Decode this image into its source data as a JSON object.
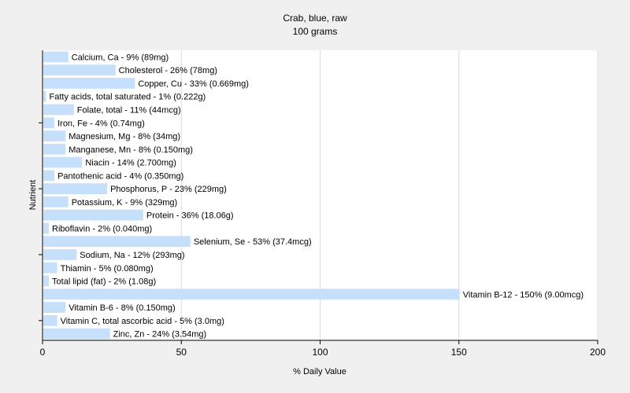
{
  "chart_data": {
    "type": "bar",
    "orientation": "horizontal",
    "title": "Crab, blue, raw",
    "subtitle": "100 grams",
    "xlabel": "% Daily Value",
    "ylabel": "Nutrient",
    "xlim": [
      0,
      200
    ],
    "xticks": [
      "0",
      "50",
      "100",
      "150",
      "200"
    ],
    "grid": true,
    "bar_color": "#c6dffb",
    "categories": [
      "Calcium, Ca",
      "Cholesterol",
      "Copper, Cu",
      "Fatty acids, total saturated",
      "Folate, total",
      "Iron, Fe",
      "Magnesium, Mg",
      "Manganese, Mn",
      "Niacin",
      "Pantothenic acid",
      "Phosphorus, P",
      "Potassium, K",
      "Protein",
      "Riboflavin",
      "Selenium, Se",
      "Sodium, Na",
      "Thiamin",
      "Total lipid (fat)",
      "Vitamin B-12",
      "Vitamin B-6",
      "Vitamin C, total ascorbic acid",
      "Zinc, Zn"
    ],
    "values": [
      9,
      26,
      33,
      1,
      11,
      4,
      8,
      8,
      14,
      4,
      23,
      9,
      36,
      2,
      53,
      12,
      5,
      2,
      150,
      8,
      5,
      24
    ],
    "labels": [
      "Calcium, Ca - 9% (89mg)",
      "Cholesterol - 26% (78mg)",
      "Copper, Cu - 33% (0.669mg)",
      "Fatty acids, total saturated - 1% (0.222g)",
      "Folate, total - 11% (44mcg)",
      "Iron, Fe - 4% (0.74mg)",
      "Magnesium, Mg - 8% (34mg)",
      "Manganese, Mn - 8% (0.150mg)",
      "Niacin - 14% (2.700mg)",
      "Pantothenic acid - 4% (0.350mg)",
      "Phosphorus, P - 23% (229mg)",
      "Potassium, K - 9% (329mg)",
      "Protein - 36% (18.06g)",
      "Riboflavin - 2% (0.040mg)",
      "Selenium, Se - 53% (37.4mcg)",
      "Sodium, Na - 12% (293mg)",
      "Thiamin - 5% (0.080mg)",
      "Total lipid (fat) - 2% (1.08g)",
      "Vitamin B-12 - 150% (9.00mcg)",
      "Vitamin B-6 - 8% (0.150mg)",
      "Vitamin C, total ascorbic acid - 5% (3.0mg)",
      "Zinc, Zn - 24% (3.54mg)"
    ]
  }
}
